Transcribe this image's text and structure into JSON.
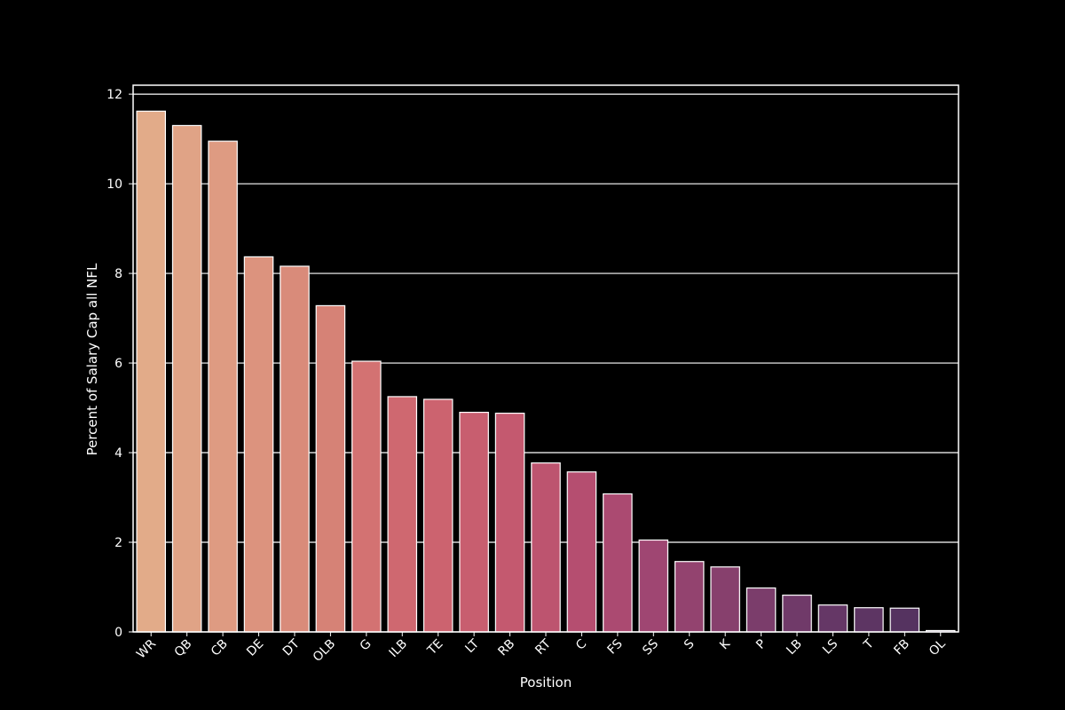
{
  "chart_data": {
    "type": "bar",
    "title": "",
    "xlabel": "Position",
    "ylabel": "Percent of Salary Cap all NFL",
    "categories": [
      "WR",
      "QB",
      "CB",
      "DE",
      "DT",
      "OLB",
      "G",
      "ILB",
      "TE",
      "LT",
      "RB",
      "RT",
      "C",
      "FS",
      "SS",
      "S",
      "K",
      "P",
      "LB",
      "LS",
      "T",
      "FB",
      "OL"
    ],
    "values": [
      11.62,
      11.3,
      10.95,
      8.37,
      8.16,
      7.28,
      6.04,
      5.25,
      5.19,
      4.9,
      4.88,
      3.77,
      3.57,
      3.08,
      2.05,
      1.57,
      1.45,
      0.98,
      0.82,
      0.6,
      0.54,
      0.53,
      0.03
    ],
    "ylim": [
      0,
      12.2
    ],
    "yticks": [
      0,
      2,
      4,
      6,
      8,
      10,
      12
    ],
    "grid": true,
    "background": "#000000",
    "colors": [
      "#e2ab89",
      "#e0a386",
      "#de9b82",
      "#dc937e",
      "#d98b7a",
      "#d68276",
      "#d37272",
      "#cf6870",
      "#cc636f",
      "#c85e6f",
      "#c4596f",
      "#bd546f",
      "#b54e70",
      "#ab4a71",
      "#9f4672",
      "#93436f",
      "#87406d",
      "#7b3d6b",
      "#703a69",
      "#653766",
      "#5d3563",
      "#553360",
      "#4c305c"
    ]
  }
}
